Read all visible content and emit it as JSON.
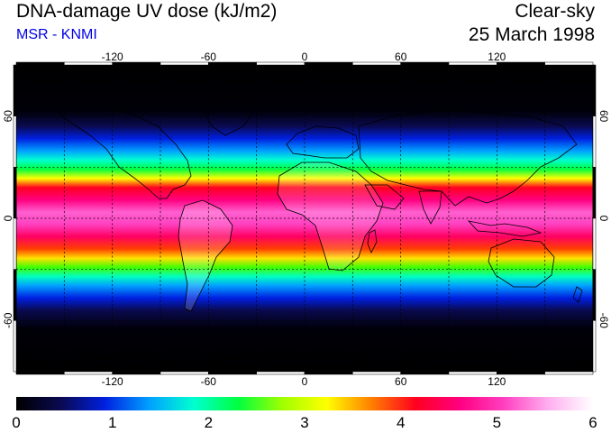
{
  "header": {
    "title": "DNA-damage UV dose (kJ/m2)",
    "subtitle": "MSR - KNMI",
    "mode": "Clear-sky",
    "date": "25 March 1998"
  },
  "map": {
    "lon_ticks": [
      "-120",
      "-60",
      "0",
      "60",
      "120"
    ],
    "lat_ticks_left": [
      "60",
      "0",
      "-60"
    ],
    "lat_ticks_right": [
      "60",
      "0",
      "-60"
    ],
    "lon_range": [
      -180,
      180
    ],
    "lat_range": [
      -90,
      90
    ]
  },
  "colorbar": {
    "labels": [
      "0",
      "1",
      "2",
      "3",
      "4",
      "5",
      "6"
    ],
    "range": [
      0,
      6
    ],
    "stops": [
      "#000000",
      "#0a0a50",
      "#0020e0",
      "#00a0ff",
      "#00ffd0",
      "#00ff40",
      "#a0ff00",
      "#ffff00",
      "#ff8000",
      "#ff0020",
      "#ff0080",
      "#ff40c0",
      "#ffb0f0",
      "#ffffff"
    ]
  },
  "colors": {
    "subtitle": "#0000e6",
    "frame": "#000000",
    "grid": "#000000"
  }
}
